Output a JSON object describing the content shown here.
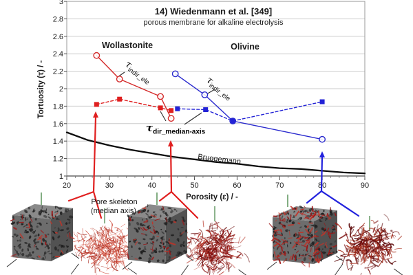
{
  "title": "14) Wiedenmann et al. [349]",
  "subtitle": "porous membrane for alkaline electrolysis",
  "colors": {
    "wollastonite": "#d42a2a",
    "olivine": "#2a2ace",
    "bruggemann": "#0d0d0d",
    "annotation_red": "#e01f1f",
    "annotation_blue": "#2222dd"
  },
  "labels": {
    "wollastonite": "Wollastonite",
    "olivine": "Olivine",
    "tau_indir_w": {
      "main": "τ",
      "sub": "indir_ele"
    },
    "tau_indir_o": {
      "main": "τ",
      "sub": "indir_ele"
    },
    "tau_dir": {
      "main": "τ",
      "sub": "dir_median-axis"
    },
    "bruggemann": "Bruggemann",
    "pore_skeleton_line1": "Pore skeleton",
    "pore_skeleton_line2": "(median axis)"
  },
  "chart_data": {
    "type": "line",
    "title": "14) Wiedenmann et al. [349]",
    "subtitle": "porous membrane for alkaline electrolysis",
    "xlabel": "Porosity (ε) / -",
    "ylabel": "Tortuosity (τ) / -",
    "xlim": [
      20,
      90
    ],
    "ylim": [
      1,
      3
    ],
    "x_ticks": [
      20,
      30,
      40,
      50,
      60,
      70,
      80,
      90
    ],
    "y_ticks": [
      1,
      1.2,
      1.4,
      1.6,
      1.8,
      2,
      2.2,
      2.4,
      2.6,
      2.8,
      3
    ],
    "grid": "horizontal",
    "legend": "inline-annotations",
    "series": [
      {
        "name": "Wollastonite τ_indir_ele",
        "color": "#d42a2a",
        "line": "solid",
        "marker": "circle-open",
        "points": [
          [
            27,
            2.38
          ],
          [
            32.4,
            2.11
          ],
          [
            42,
            1.91
          ],
          [
            44.5,
            1.66
          ]
        ]
      },
      {
        "name": "Wollastonite τ_dir_median-axis",
        "color": "#df1f1f",
        "line": "dashed",
        "marker": "square",
        "points": [
          [
            27,
            1.82
          ],
          [
            32.4,
            1.88
          ],
          [
            42,
            1.78
          ],
          [
            44.5,
            1.75
          ]
        ]
      },
      {
        "name": "Olivine τ_indir_ele",
        "color": "#2a2ace",
        "line": "solid",
        "marker": "circle-open",
        "points": [
          [
            45.5,
            2.17
          ],
          [
            52.4,
            1.93
          ],
          [
            59,
            1.63
          ],
          [
            80,
            1.42
          ]
        ]
      },
      {
        "name": "Olivine τ_dir_median-axis",
        "color": "#2222d6",
        "line": "dashed",
        "marker": "square",
        "points": [
          [
            46,
            1.77
          ],
          [
            52.6,
            1.76
          ],
          [
            59,
            1.63
          ],
          [
            80,
            1.85
          ]
        ]
      },
      {
        "name": "Bruggemann",
        "color": "#0d0d0d",
        "line": "solid",
        "marker": "none",
        "points": [
          [
            20,
            1.5
          ],
          [
            25,
            1.41
          ],
          [
            30,
            1.35
          ],
          [
            35,
            1.3
          ],
          [
            40,
            1.26
          ],
          [
            45,
            1.22
          ],
          [
            50,
            1.19
          ],
          [
            55,
            1.16
          ],
          [
            60,
            1.14
          ],
          [
            65,
            1.11
          ],
          [
            70,
            1.09
          ],
          [
            75,
            1.08
          ],
          [
            80,
            1.06
          ],
          [
            85,
            1.04
          ],
          [
            90,
            1.03
          ]
        ]
      }
    ]
  }
}
